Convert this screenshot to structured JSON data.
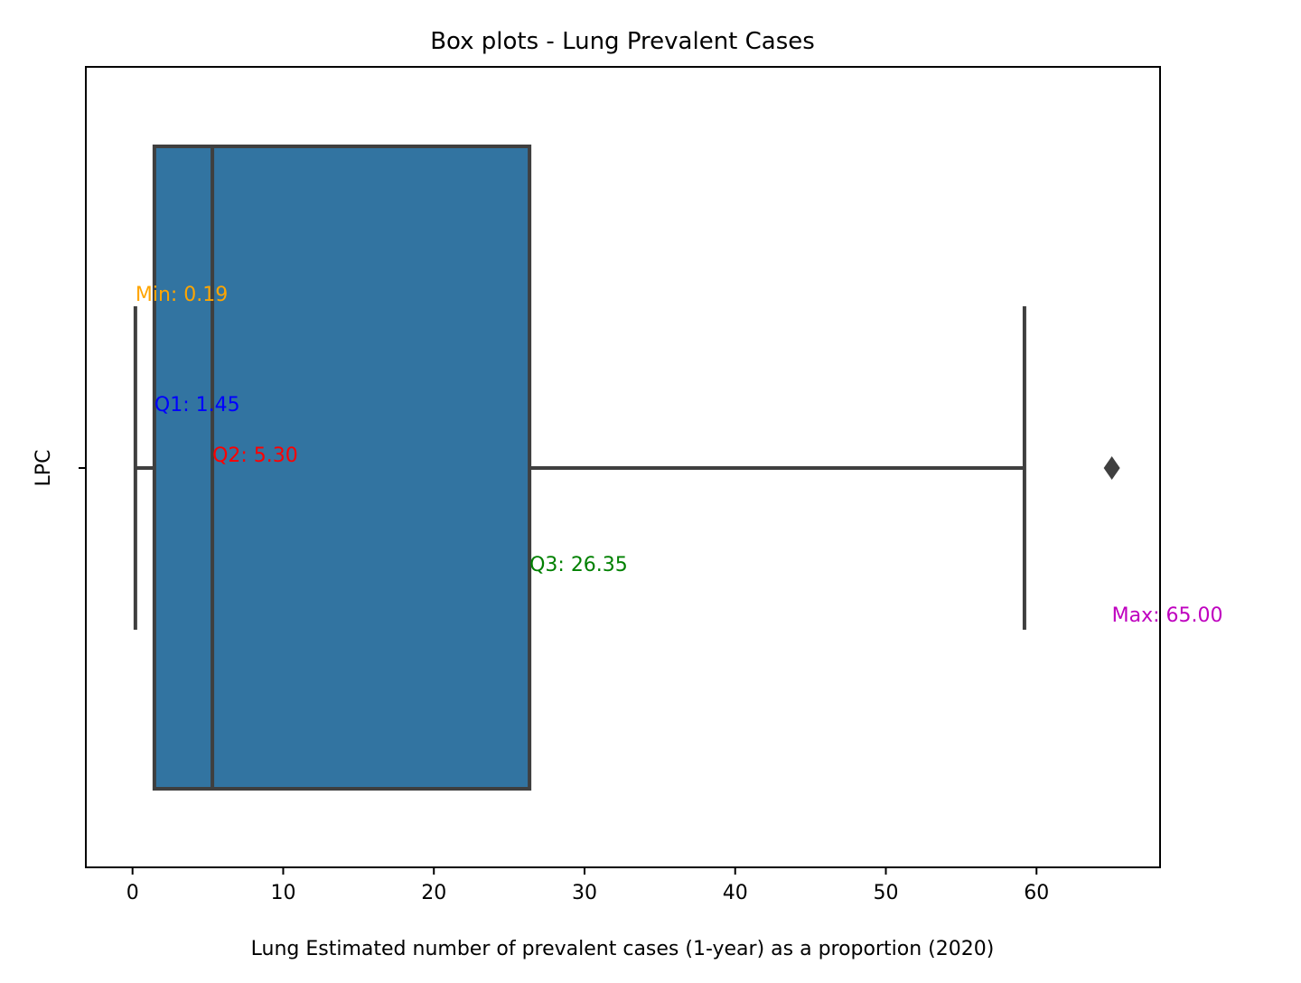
{
  "chart_data": {
    "type": "box",
    "orientation": "horizontal",
    "title": "Box plots - Lung Prevalent Cases",
    "xlabel": "Lung Estimated number of prevalent cases (1-year) as a proportion (2020)",
    "ylabel": "",
    "category": "LPC",
    "xlim": [
      -3.1,
      68.2
    ],
    "xticks": [
      0,
      10,
      20,
      30,
      40,
      50,
      60
    ],
    "grid": false,
    "box": {
      "whisker_low": 0.19,
      "q1": 1.45,
      "median": 5.3,
      "q3": 26.35,
      "whisker_high": 59.2,
      "outliers": [
        65.0
      ],
      "color": "#3274a1",
      "line_color": "#3f3f3f"
    },
    "annotations": [
      {
        "text": "Min: 0.19",
        "x": 0.19,
        "color": "#ffa500"
      },
      {
        "text": "Q1: 1.45",
        "x": 1.45,
        "color": "#0000ff"
      },
      {
        "text": "Q2: 5.30",
        "x": 5.3,
        "color": "#ff0000"
      },
      {
        "text": "Q3: 26.35",
        "x": 26.35,
        "color": "#008000"
      },
      {
        "text": "Max: 65.00",
        "x": 65.0,
        "color": "#bf00bf"
      }
    ]
  }
}
